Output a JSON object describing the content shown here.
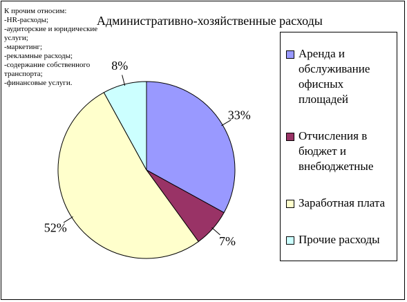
{
  "title": "Административно-хозяйственные расходы",
  "note": [
    "К прочим относим:",
    "-HR-расходы;",
    "-аудиторские и юридические услуги;",
    "-маркетинг;",
    "-рекламные расходы;",
    "-содержание собственного транспорта;",
    "-финансовые услуги."
  ],
  "chart_data": {
    "type": "pie",
    "categories": [
      "Аренда и обслуживание офисных площадей",
      "Отчисления в бюджет и внебюджетные",
      "Заработная плата",
      "Прочие расходы"
    ],
    "values": [
      33,
      7,
      52,
      8
    ],
    "value_labels": [
      "33%",
      "7%",
      "52%",
      "8%"
    ],
    "colors": [
      "#9999ff",
      "#993366",
      "#ffffcc",
      "#ccffff"
    ],
    "legend": "right"
  }
}
